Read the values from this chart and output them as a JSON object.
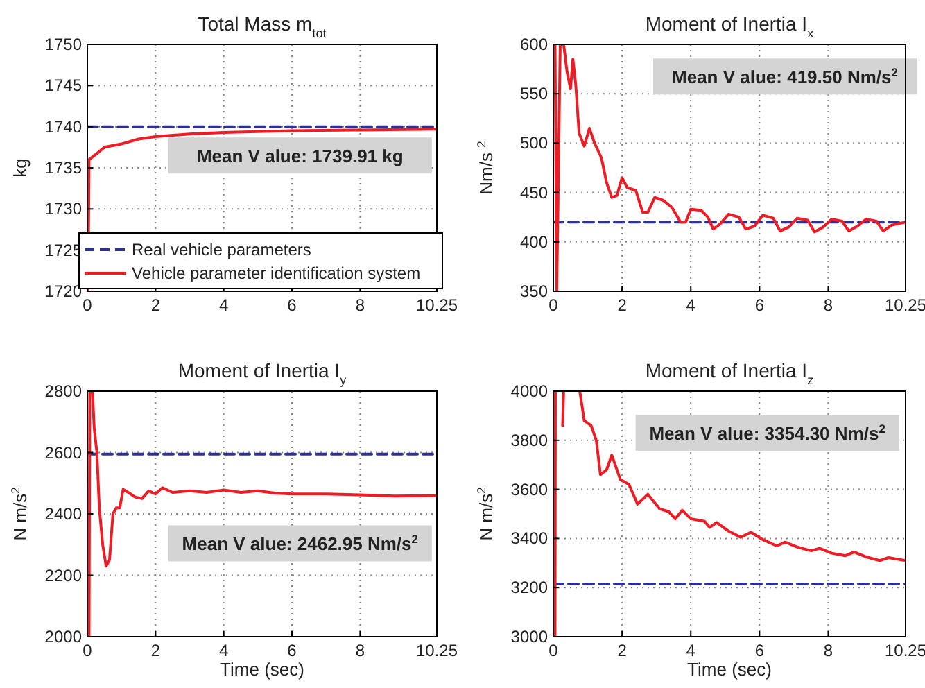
{
  "chart_data": [
    {
      "type": "line",
      "title": "Total Mass  m$_{tot}$",
      "ylabel": "kg",
      "xlim": [
        0,
        10.25
      ],
      "xticks": [
        0,
        2,
        4,
        6,
        8,
        10.25
      ],
      "ylim": [
        1720,
        1750
      ],
      "yticks": [
        1720,
        1725,
        1730,
        1735,
        1740,
        1745,
        1750
      ],
      "grid": true,
      "legend": "bottom",
      "annotations": [
        "Mean V alue:  1739.91  kg"
      ],
      "series": [
        {
          "name": "Real vehicle parameters",
          "color": "#2e3192",
          "line_style": "dashed",
          "x": [
            0,
            10.25
          ],
          "values": [
            1740,
            1740
          ]
        },
        {
          "name": "Vehicle parameter identification system",
          "color": "#ee1c25",
          "line_style": "solid",
          "x": [
            0.02,
            0.05,
            0.3,
            0.5,
            1,
            1.5,
            2,
            3,
            4,
            6,
            8,
            10.25
          ],
          "values": [
            1720,
            1736,
            1736.8,
            1737.5,
            1737.9,
            1738.5,
            1738.8,
            1739.1,
            1739.3,
            1739.5,
            1739.6,
            1739.7
          ]
        }
      ]
    },
    {
      "type": "line",
      "title": "Moment of Inertia I$_{x}$",
      "ylabel": "Nm/s $^{2}$",
      "xlim": [
        0,
        10.25
      ],
      "xticks": [
        0,
        2,
        4,
        6,
        8,
        10.25
      ],
      "ylim": [
        350,
        600
      ],
      "yticks": [
        350,
        400,
        450,
        500,
        550,
        600
      ],
      "grid": true,
      "annotations": [
        "Mean V alue:  419.50  Nm/s$^{2}$"
      ],
      "series": [
        {
          "color": "#2e3192",
          "line_style": "dashed",
          "x": [
            0,
            10.25
          ],
          "values": [
            420,
            420
          ]
        },
        {
          "color": "#ee1c25",
          "line_style": "solid",
          "x": [
            0.05,
            0.1,
            0.2,
            0.3,
            0.4,
            0.5,
            0.57,
            0.65,
            0.75,
            0.9,
            1.05,
            1.2,
            1.4,
            1.55,
            1.7,
            1.85,
            2.0,
            2.15,
            2.4,
            2.6,
            2.75,
            2.95,
            3.2,
            3.45,
            3.7,
            3.85,
            4.0,
            4.3,
            4.5,
            4.65,
            4.85,
            5.1,
            5.4,
            5.6,
            5.85,
            6.1,
            6.4,
            6.6,
            6.85,
            7.1,
            7.4,
            7.6,
            7.85,
            8.1,
            8.4,
            8.6,
            8.85,
            9.1,
            9.4,
            9.6,
            9.85,
            10.25
          ],
          "values": [
            600,
            350,
            600,
            600,
            572,
            555,
            585,
            560,
            510,
            497,
            515,
            500,
            485,
            460,
            445,
            447,
            465,
            455,
            452,
            430,
            430,
            445,
            442,
            435,
            420,
            420,
            433,
            432,
            425,
            413,
            418,
            428,
            425,
            413,
            416,
            427,
            424,
            411,
            415,
            424,
            422,
            410,
            415,
            423,
            421,
            411,
            416,
            423,
            421,
            411,
            417,
            420
          ]
        }
      ]
    },
    {
      "type": "line",
      "title": "Moment of Inertia I$_{y}$",
      "xlabel": "Time (sec)",
      "ylabel": "N  m/s$^{2}$",
      "xlim": [
        0,
        10.25
      ],
      "xticks": [
        0,
        2,
        4,
        6,
        8,
        10.25
      ],
      "ylim": [
        2000,
        2800
      ],
      "yticks": [
        2000,
        2200,
        2400,
        2600,
        2800
      ],
      "grid": true,
      "annotations": [
        "Mean V alue:  2462.95  Nm/s$^{2}$"
      ],
      "series": [
        {
          "color": "#2e3192",
          "line_style": "dashed",
          "x": [
            0,
            10.25
          ],
          "values": [
            2595,
            2595
          ]
        },
        {
          "color": "#ee1c25",
          "line_style": "solid",
          "x": [
            0.05,
            0.07,
            0.15,
            0.2,
            0.28,
            0.35,
            0.45,
            0.55,
            0.65,
            0.75,
            0.85,
            0.95,
            1.05,
            1.2,
            1.4,
            1.6,
            1.8,
            2.0,
            2.2,
            2.5,
            3.0,
            3.5,
            4.0,
            4.5,
            5.0,
            5.5,
            6.0,
            7.0,
            8.0,
            9.0,
            10.25
          ],
          "values": [
            2000,
            2800,
            2800,
            2680,
            2600,
            2420,
            2300,
            2230,
            2250,
            2400,
            2420,
            2420,
            2480,
            2470,
            2455,
            2450,
            2475,
            2465,
            2485,
            2470,
            2475,
            2470,
            2478,
            2470,
            2475,
            2468,
            2465,
            2465,
            2462,
            2458,
            2460
          ]
        }
      ]
    },
    {
      "type": "line",
      "title": "Moment of Inertia I$_{z}$",
      "xlabel": "Time (sec)",
      "ylabel": "N  m/s$^{2}$",
      "xlim": [
        0,
        10.25
      ],
      "xticks": [
        0,
        2,
        4,
        6,
        8,
        10.25
      ],
      "ylim": [
        3000,
        4000
      ],
      "yticks": [
        3000,
        3200,
        3400,
        3600,
        3800,
        4000
      ],
      "grid": true,
      "annotations": [
        "Mean V alue:  3354.30  Nm/s$^{2}$"
      ],
      "series": [
        {
          "color": "#2e3192",
          "line_style": "dashed",
          "x": [
            0,
            10.25
          ],
          "values": [
            3215,
            3215
          ]
        },
        {
          "color": "#ee1c25",
          "line_style": "solid",
          "x": [
            0.05,
            0.06,
            0.15,
            0.27,
            0.3,
            0.5,
            0.77,
            0.9,
            1.1,
            1.25,
            1.37,
            1.55,
            1.7,
            1.95,
            2.2,
            2.45,
            2.75,
            3.1,
            3.35,
            3.55,
            3.75,
            4.0,
            4.4,
            4.55,
            4.75,
            5.1,
            5.45,
            5.75,
            6.1,
            6.5,
            6.75,
            7.1,
            7.5,
            7.75,
            8.1,
            8.5,
            8.75,
            9.1,
            9.5,
            9.75,
            10.25
          ],
          "values": [
            3000,
            4000,
            null,
            3860,
            4000,
            null,
            4000,
            3880,
            3860,
            3800,
            3660,
            3680,
            3740,
            3640,
            3620,
            3540,
            3580,
            3520,
            3510,
            3480,
            3515,
            3480,
            3470,
            3445,
            3465,
            3430,
            3405,
            3425,
            3395,
            3370,
            3385,
            3365,
            3350,
            3360,
            3340,
            3330,
            3345,
            3325,
            3310,
            3322,
            3310
          ]
        }
      ]
    }
  ]
}
